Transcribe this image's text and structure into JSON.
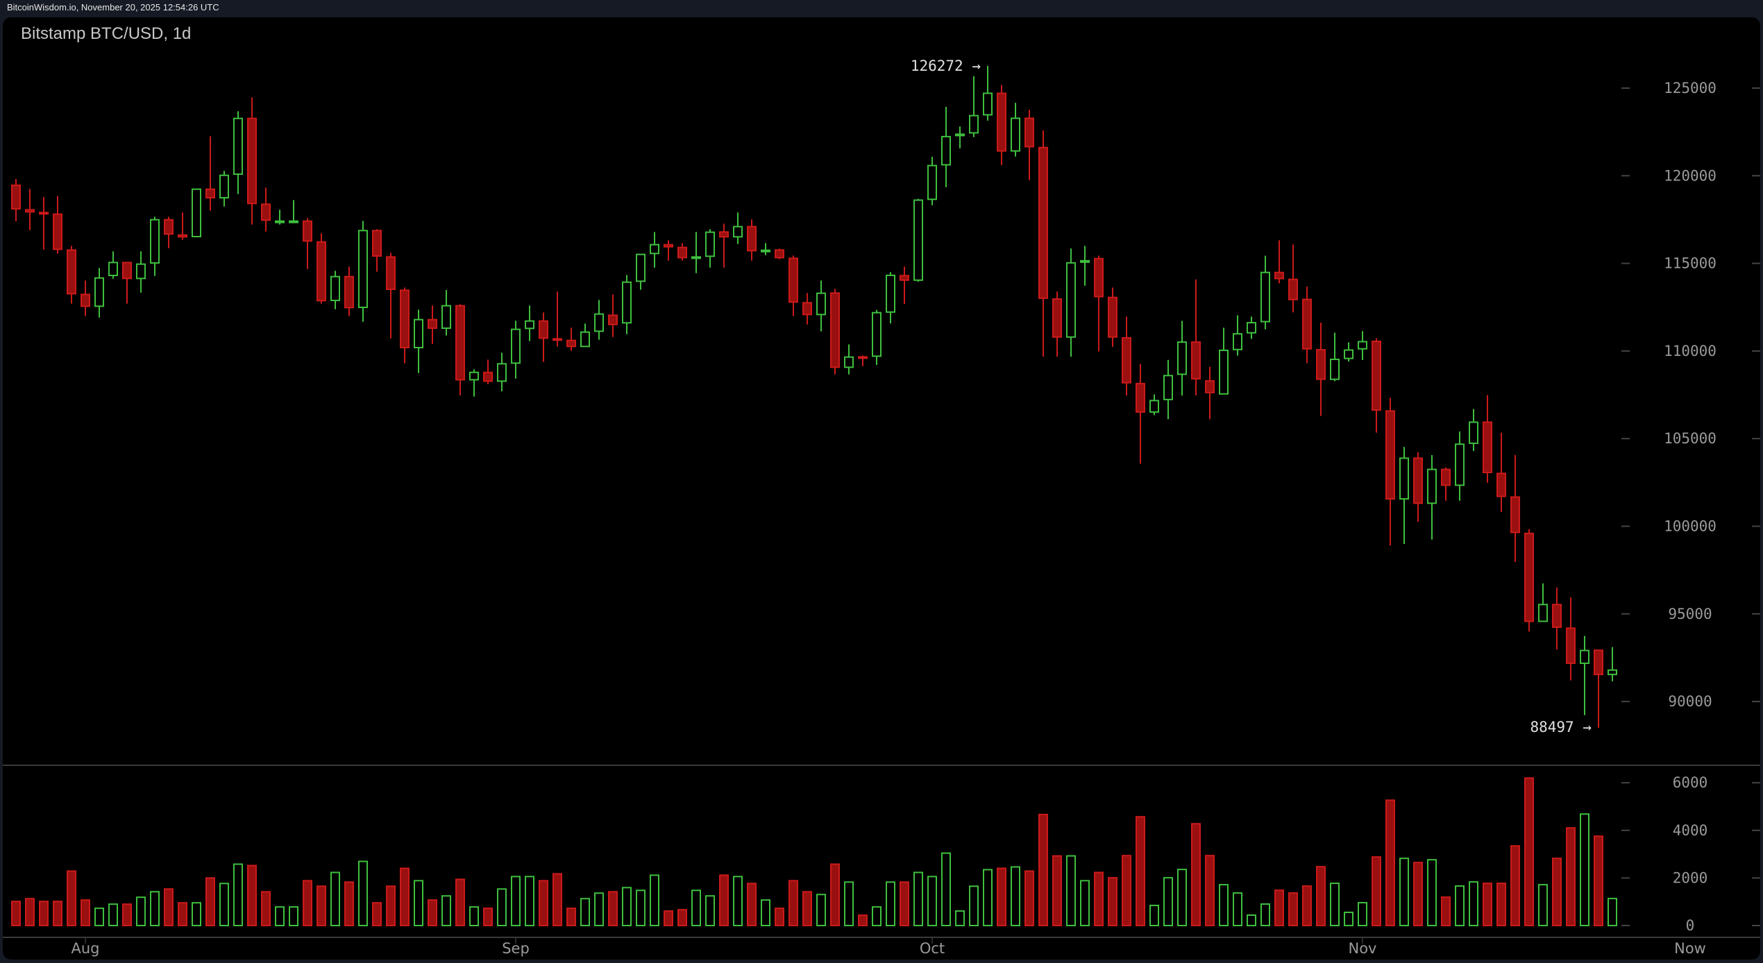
{
  "topbar": {
    "text": "BitcoinWisdom.io, November 20, 2025 12:54:26 UTC"
  },
  "chart": {
    "title": "Bitstamp BTC/USD, 1d"
  },
  "colors": {
    "up": "#3fbf3f",
    "down": "#cc1a1a",
    "down_fill": "#9a1010",
    "axis_text": "#9a9a9a",
    "grid_line": "#3a3a3a",
    "background": "#000000",
    "page": "#161a25"
  },
  "chart_data": {
    "type": "candlestick",
    "title": "Bitstamp BTC/USD, 1d",
    "exchange": "Bitstamp",
    "pair": "BTC/USD",
    "interval": "1d",
    "price_axis": {
      "ticks": [
        90000,
        95000,
        100000,
        105000,
        110000,
        115000,
        120000,
        125000
      ],
      "range": [
        86000,
        127600
      ]
    },
    "volume_axis": {
      "ticks": [
        0,
        2000,
        4000,
        6000
      ],
      "range": [
        0,
        6800
      ]
    },
    "x_labels": [
      {
        "label": "Aug",
        "index": 5
      },
      {
        "label": "Sep",
        "index": 36
      },
      {
        "label": "Oct",
        "index": 66
      },
      {
        "label": "Nov",
        "index": 97
      },
      {
        "label": "Now",
        "index": 121
      }
    ],
    "annotations": [
      {
        "text": "126272 →",
        "index": 70,
        "price": 126272,
        "type": "high"
      },
      {
        "text": "88497 →",
        "index": 114,
        "price": 88497,
        "type": "low"
      }
    ],
    "ohlc": [
      [
        119458,
        119814,
        117399,
        118112
      ],
      [
        118058,
        119246,
        116897,
        117940
      ],
      [
        117900,
        118784,
        115788,
        117860
      ],
      [
        117807,
        118850,
        115551,
        115801
      ],
      [
        115762,
        115999,
        112701,
        113268
      ],
      [
        113228,
        114020,
        111988,
        112555
      ],
      [
        112555,
        114733,
        111908,
        114165
      ],
      [
        114311,
        115683,
        114126,
        115050
      ],
      [
        115050,
        115050,
        112701,
        114139
      ],
      [
        114139,
        115683,
        113334,
        114957
      ],
      [
        115023,
        117662,
        114284,
        117491
      ],
      [
        117491,
        117662,
        115868,
        116672
      ],
      [
        116620,
        117900,
        116343,
        116514
      ],
      [
        116528,
        119233,
        116528,
        119233
      ],
      [
        119233,
        122255,
        118005,
        118744
      ],
      [
        118744,
        120275,
        118243,
        120025
      ],
      [
        120091,
        123680,
        118956,
        123271
      ],
      [
        123271,
        124472,
        117214,
        118415
      ],
      [
        118375,
        119325,
        116818,
        117464
      ],
      [
        117385,
        118058,
        117214,
        117412
      ],
      [
        117385,
        118613,
        117293,
        117412
      ],
      [
        117412,
        117583,
        114680,
        116277
      ],
      [
        116224,
        116712,
        112701,
        112872
      ],
      [
        112885,
        114574,
        112384,
        114245
      ],
      [
        114245,
        114812,
        111988,
        112476
      ],
      [
        112489,
        117425,
        111671,
        116871
      ],
      [
        116871,
        116950,
        114522,
        115419
      ],
      [
        115366,
        115604,
        110721,
        113519
      ],
      [
        113466,
        113624,
        109296,
        110193
      ],
      [
        110193,
        112357,
        108741,
        111790
      ],
      [
        111790,
        112595,
        110404,
        111302
      ],
      [
        111302,
        113480,
        110880,
        112582
      ],
      [
        112582,
        112674,
        107463,
        108359
      ],
      [
        108359,
        108953,
        107400,
        108781
      ],
      [
        108781,
        109507,
        108108,
        108280
      ],
      [
        108280,
        109903,
        107700,
        109270
      ],
      [
        109309,
        111724,
        108425,
        111236
      ],
      [
        111289,
        112595,
        110563,
        111711
      ],
      [
        111711,
        112199,
        109375,
        110734
      ],
      [
        110695,
        113387,
        110246,
        110642
      ],
      [
        110603,
        111328,
        110009,
        110259
      ],
      [
        110259,
        111566,
        110246,
        111078
      ],
      [
        111130,
        112912,
        110642,
        112107
      ],
      [
        112041,
        113229,
        110801,
        111513
      ],
      [
        111606,
        114337,
        110959,
        113928
      ],
      [
        113981,
        115512,
        113493,
        115512
      ],
      [
        115565,
        116792,
        114760,
        116066
      ],
      [
        116066,
        116317,
        115156,
        115947
      ],
      [
        115908,
        116158,
        115156,
        115327
      ],
      [
        115353,
        116792,
        114443,
        115367
      ],
      [
        115406,
        116950,
        114760,
        116779
      ],
      [
        116792,
        117267,
        114760,
        116515
      ],
      [
        116515,
        117901,
        116106,
        117096
      ],
      [
        117096,
        117505,
        115156,
        115723
      ],
      [
        115736,
        116158,
        115472,
        115749
      ],
      [
        115763,
        115842,
        115235,
        115327
      ],
      [
        115288,
        115446,
        111988,
        112793
      ],
      [
        112754,
        113308,
        111513,
        112080
      ],
      [
        112080,
        114021,
        111117,
        113295
      ],
      [
        113308,
        113546,
        108663,
        109072
      ],
      [
        109072,
        110378,
        108663,
        109652
      ],
      [
        109666,
        109745,
        109138,
        109613
      ],
      [
        109705,
        112344,
        109204,
        112186
      ],
      [
        112222,
        114497,
        111570,
        114315
      ],
      [
        114300,
        114816,
        112678,
        114042
      ],
      [
        114042,
        118684,
        113951,
        118608
      ],
      [
        118654,
        121080,
        118320,
        120580
      ],
      [
        120625,
        123932,
        119351,
        122233
      ],
      [
        122339,
        122810,
        121566,
        122370
      ],
      [
        122446,
        125676,
        122203,
        123431
      ],
      [
        123477,
        126272,
        123143,
        124705
      ],
      [
        124705,
        125176,
        120610,
        121414
      ],
      [
        121414,
        124160,
        121096,
        123280
      ],
      [
        123280,
        123765,
        119746,
        121657
      ],
      [
        121611,
        122582,
        109674,
        113011
      ],
      [
        112965,
        113390,
        109674,
        110797
      ],
      [
        110797,
        115848,
        109674,
        115028
      ],
      [
        115120,
        115999,
        113724,
        115150
      ],
      [
        115271,
        115438,
        109977,
        113102
      ],
      [
        113057,
        113618,
        110236,
        110797
      ],
      [
        110752,
        111964,
        107460,
        108188
      ],
      [
        108142,
        109265,
        103561,
        106519
      ],
      [
        106519,
        107520,
        106337,
        107171
      ],
      [
        107232,
        109492,
        106109,
        108597
      ],
      [
        108673,
        111722,
        107460,
        110508
      ],
      [
        110508,
        114084,
        107460,
        108415
      ],
      [
        108294,
        109098,
        106109,
        107627
      ],
      [
        107551,
        111327,
        107551,
        110038
      ],
      [
        110084,
        112040,
        109735,
        110978
      ],
      [
        111039,
        111964,
        110690,
        111615
      ],
      [
        111676,
        115438,
        111236,
        114482
      ],
      [
        114482,
        116318,
        113860,
        114133
      ],
      [
        114088,
        116075,
        112207,
        112935
      ],
      [
        112944,
        113671,
        109309,
        110125
      ],
      [
        110071,
        111614,
        106295,
        108387
      ],
      [
        108387,
        111047,
        108281,
        109522
      ],
      [
        109575,
        110497,
        109398,
        110054
      ],
      [
        110125,
        111135,
        109486,
        110532
      ],
      [
        110550,
        110728,
        105338,
        106632
      ],
      [
        106579,
        107323,
        98902,
        101561
      ],
      [
        101561,
        104522,
        98990,
        103884
      ],
      [
        103884,
        104220,
        100249,
        101313
      ],
      [
        101313,
        104061,
        99238,
        103245
      ],
      [
        103245,
        103352,
        101455,
        102341
      ],
      [
        102341,
        105409,
        101455,
        104682
      ],
      [
        104735,
        106685,
        104292,
        105940
      ],
      [
        105940,
        107483,
        102483,
        103068
      ],
      [
        103015,
        105338,
        100816,
        101703
      ],
      [
        101667,
        104061,
        97962,
        99646
      ],
      [
        99593,
        99841,
        93991,
        94576
      ],
      [
        94576,
        96739,
        94576,
        95533
      ],
      [
        95533,
        96508,
        92962,
        94239
      ],
      [
        94186,
        95941,
        91207,
        92183
      ],
      [
        92183,
        93742,
        89222,
        92910
      ],
      [
        92927,
        92927,
        88497,
        91544
      ],
      [
        91544,
        93105,
        91154,
        91793
      ]
    ],
    "ohlc_columns": [
      "open",
      "high",
      "low",
      "close"
    ],
    "volume": [
      1014,
      1130,
      1014,
      1014,
      2289,
      1072,
      725,
      898,
      898,
      1188,
      1420,
      1536,
      956,
      956,
      2000,
      1768,
      2579,
      2521,
      1420,
      782,
      782,
      1884,
      1652,
      2231,
      1826,
      2695,
      956,
      1652,
      2405,
      1884,
      1072,
      1246,
      1942,
      782,
      725,
      1536,
      2058,
      2058,
      1884,
      2174,
      725,
      1130,
      1362,
      1420,
      1594,
      1478,
      2116,
      609,
      667,
      1478,
      1246,
      2116,
      2058,
      1768,
      1072,
      725,
      1884,
      1420,
      1304,
      2579,
      1826,
      435,
      782,
      1826,
      1826,
      2231,
      2058,
      3043,
      609,
      1652,
      2347,
      2405,
      2463,
      2289,
      4666,
      2927,
      2927,
      1884,
      2231,
      2008,
      2939,
      4569,
      844,
      2008,
      2357,
      4278,
      2939,
      1717,
      1368,
      437,
      902,
      1484,
      1368,
      1659,
      2474,
      1775,
      553,
      960,
      2881,
      5267,
      2823,
      2648,
      2765,
      1193,
      1659,
      1833,
      1775,
      1775,
      3347,
      6198,
      1717,
      2823,
      4103,
      4685,
      3754,
      1135
    ],
    "xlabel": "",
    "ylabel": "",
    "legend": []
  }
}
